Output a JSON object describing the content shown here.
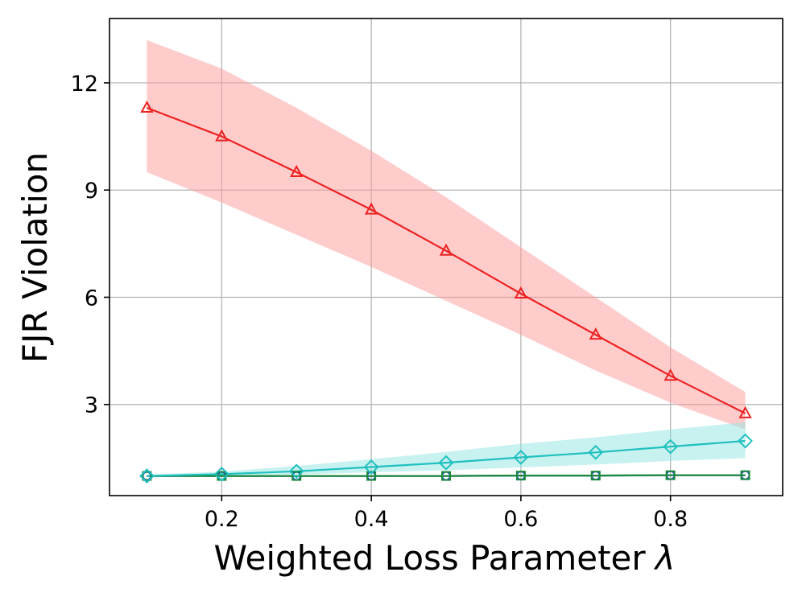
{
  "chart_data": {
    "type": "line",
    "title": "",
    "xlabel": "Weighted Loss Parameter",
    "xlabel_symbol": "λ",
    "ylabel": "FJR Violation",
    "xlim": [
      0.05,
      0.95
    ],
    "ylim": [
      0.45,
      13.8
    ],
    "grid": true,
    "legend": "none",
    "x": [
      0.1,
      0.2,
      0.3,
      0.4,
      0.5,
      0.6,
      0.7,
      0.8,
      0.9
    ],
    "xticks": [
      0.2,
      0.4,
      0.6,
      0.8
    ],
    "xtick_labels": [
      "0.2",
      "0.4",
      "0.6",
      "0.8"
    ],
    "yticks": [
      3,
      6,
      9,
      12
    ],
    "ytick_labels": [
      "3",
      "6",
      "9",
      "12"
    ],
    "series": [
      {
        "name": "red-triangle",
        "color": "#ee2222",
        "band_color": "#ff9999",
        "marker": "triangle",
        "values": [
          11.3,
          10.5,
          9.5,
          8.45,
          7.3,
          6.1,
          4.95,
          3.8,
          2.75
        ],
        "upper": [
          13.2,
          12.4,
          11.3,
          10.1,
          8.8,
          7.4,
          6.0,
          4.6,
          3.35
        ],
        "lower": [
          9.5,
          8.65,
          7.75,
          6.85,
          5.9,
          4.95,
          3.95,
          3.05,
          2.3
        ]
      },
      {
        "name": "cyan-diamond",
        "color": "#20c0c0",
        "band_color": "#90e6e0",
        "marker": "diamond",
        "values": [
          1.0,
          1.05,
          1.13,
          1.25,
          1.37,
          1.52,
          1.66,
          1.82,
          1.98
        ],
        "upper": [
          1.04,
          1.12,
          1.28,
          1.47,
          1.67,
          1.9,
          2.08,
          2.3,
          2.5
        ],
        "lower": [
          0.98,
          1.0,
          1.04,
          1.1,
          1.16,
          1.24,
          1.32,
          1.42,
          1.5
        ]
      },
      {
        "name": "blue-circle",
        "color": "#1f50c8",
        "marker": "circle",
        "values": [
          1.0,
          1.0,
          1.0,
          1.0,
          1.0,
          1.01,
          1.01,
          1.02,
          1.02
        ]
      },
      {
        "name": "green-square",
        "color": "#1a8a3a",
        "marker": "square",
        "values": [
          1.0,
          1.0,
          1.0,
          1.0,
          1.0,
          1.01,
          1.01,
          1.02,
          1.02
        ]
      }
    ]
  }
}
